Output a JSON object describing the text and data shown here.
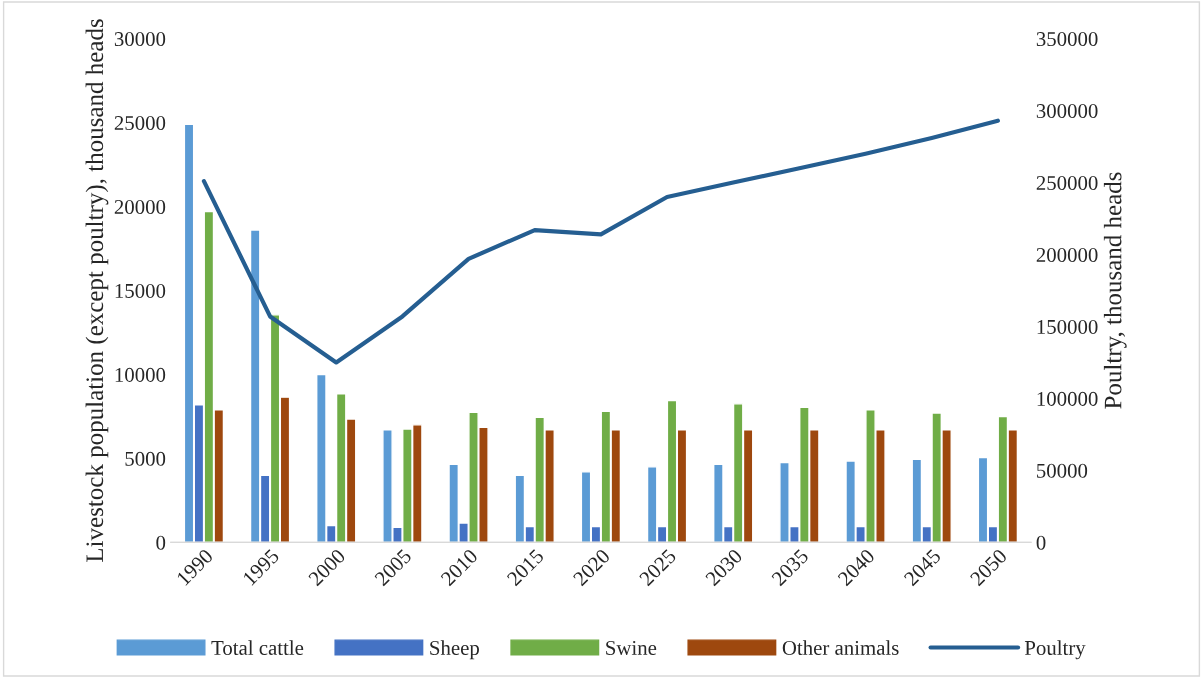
{
  "chart_data": {
    "type": "bar",
    "ylabel": "Livestock population (except poultry), thousand heads",
    "y2label": "Poultry, thousand heads",
    "categories": [
      "1990",
      "1995",
      "2000",
      "2005",
      "2010",
      "2015",
      "2020",
      "2025",
      "2030",
      "2035",
      "2040",
      "2045",
      "2050"
    ],
    "series": [
      {
        "name": "Total cattle",
        "color": "#5b9bd5",
        "values": [
          24900,
          18600,
          10000,
          6700,
          4650,
          4000,
          4200,
          4500,
          4650,
          4750,
          4850,
          4950,
          5050
        ]
      },
      {
        "name": "Sheep",
        "color": "#4472c4",
        "values": [
          8200,
          4000,
          1000,
          900,
          1150,
          950,
          950,
          950,
          950,
          950,
          950,
          950,
          950
        ]
      },
      {
        "name": "Swine",
        "color": "#70ad47",
        "values": [
          19700,
          13550,
          8850,
          6750,
          7750,
          7450,
          7800,
          8450,
          8250,
          8050,
          7900,
          7700,
          7500
        ]
      },
      {
        "name": "Other animals",
        "color": "#9e480e",
        "values": [
          7900,
          8650,
          7350,
          7000,
          6850,
          6700,
          6700,
          6700,
          6700,
          6700,
          6700,
          6700,
          6700
        ]
      },
      {
        "name": "Poultry",
        "color": "#255e91",
        "type": "line",
        "axis": "y2",
        "values": [
          251000,
          157000,
          125000,
          157000,
          197000,
          217000,
          214000,
          240000,
          250000,
          260000,
          270000,
          281000,
          293000
        ]
      }
    ],
    "ylim": [
      0,
      30000
    ],
    "yticks": [
      0,
      5000,
      10000,
      15000,
      20000,
      25000,
      30000
    ],
    "y2lim": [
      0,
      350000
    ],
    "y2ticks": [
      0,
      50000,
      100000,
      150000,
      200000,
      250000,
      300000,
      350000
    ],
    "grid": false,
    "legend": "bottom"
  }
}
